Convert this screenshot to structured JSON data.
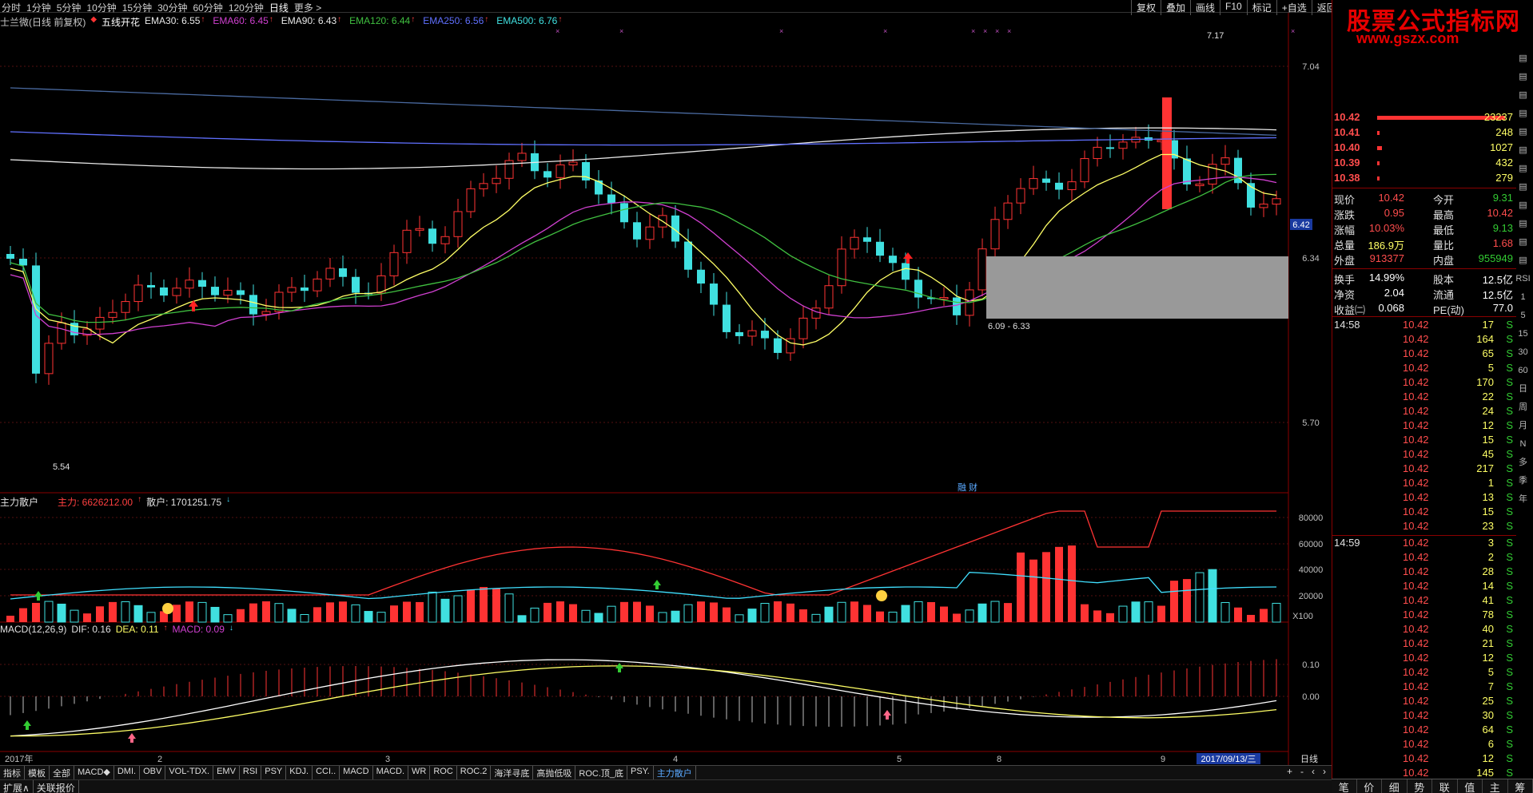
{
  "topbar": {
    "periods": [
      "分时",
      "1分钟",
      "5分钟",
      "10分钟",
      "15分钟",
      "30分钟",
      "60分钟",
      "120分钟",
      "日线",
      "更多 >"
    ],
    "active_period": "日线",
    "right_buttons": [
      "复权",
      "叠加",
      "画线",
      "F10",
      "标记",
      "+自选",
      "返回"
    ]
  },
  "main_header": {
    "stock": "士兰微(日线 前复权)",
    "pattern": "五线开花",
    "emas": [
      {
        "label": "EMA30: 6.55",
        "color": "#e8e8e8"
      },
      {
        "label": "EMA60: 6.45",
        "color": "#d040d0"
      },
      {
        "label": "EMA90: 6.43",
        "color": "#e8e8e8"
      },
      {
        "label": "EMA120: 6.44",
        "color": "#40c040"
      },
      {
        "label": "EMA250: 6.56",
        "color": "#6070ff"
      },
      {
        "label": "EMA500: 6.76",
        "color": "#40e0e0"
      }
    ]
  },
  "price_axis": {
    "labels": [
      "7.04",
      "6.34",
      "5.70"
    ],
    "current_tag": "6.42"
  },
  "annotations": {
    "high": "7.17",
    "low": "5.54",
    "gap": "6.09 - 6.33",
    "event": "融 财"
  },
  "capital_header": {
    "name": "主力散户",
    "main_label": "主力: 6626212.00",
    "retail_label": "散户: 1701251.75",
    "axis": [
      "80000",
      "60000",
      "40000",
      "20000"
    ],
    "unit": "X100",
    "main_color": "#ff3333",
    "retail_color": "#40e0ff"
  },
  "macd_header": {
    "name": "MACD(12,26,9)",
    "dif": "DIF: 0.16",
    "dea": "DEA: 0.11",
    "macd": "MACD: 0.09",
    "axis": [
      "0.10",
      "0.00"
    ]
  },
  "time_axis": {
    "labels": [
      "2017年",
      "2",
      "3",
      "4",
      "5",
      "8",
      "9"
    ],
    "cursor": "2017/09/13/三",
    "period_btn": "日线"
  },
  "tabs": [
    "指标",
    "模板",
    "全部",
    "MACD◆",
    "DMI.",
    "OBV",
    "VOL-TDX.",
    "EMV",
    "RSI",
    "PSY",
    "KDJ.",
    "CCI..",
    "MACD",
    "MACD.",
    "WR",
    "ROC",
    "ROC.2",
    "海洋寻底",
    "高抛低吸",
    "ROC.顶_底",
    "PSY.",
    "主力散户"
  ],
  "active_tab": "主力散户",
  "tabs_bottom": [
    "扩展∧",
    "关联报价"
  ],
  "tabs_ctl": [
    "+",
    "-",
    "‹",
    "›"
  ],
  "logo": {
    "title": "股票公式指标网",
    "url": "www.gszx.com"
  },
  "order_book": [
    {
      "price": "10.42",
      "vol": "23237",
      "bar": 1.0
    },
    {
      "price": "10.41",
      "vol": "248",
      "bar": 0.02
    },
    {
      "price": "10.40",
      "vol": "1027",
      "bar": 0.04
    },
    {
      "price": "10.39",
      "vol": "432",
      "bar": 0.02
    },
    {
      "price": "10.38",
      "vol": "279",
      "bar": 0.02
    }
  ],
  "quote": [
    {
      "l1": "现价",
      "v1": "10.42",
      "c1": "#ff4d4d",
      "l2": "今开",
      "v2": "9.31",
      "c2": "#33cc33"
    },
    {
      "l1": "涨跌",
      "v1": "0.95",
      "c1": "#ff4d4d",
      "l2": "最高",
      "v2": "10.42",
      "c2": "#ff4d4d"
    },
    {
      "l1": "涨幅",
      "v1": "10.03%",
      "c1": "#ff4d4d",
      "l2": "最低",
      "v2": "9.13",
      "c2": "#33cc33"
    },
    {
      "l1": "总量",
      "v1": "186.9万",
      "c1": "#ffff66",
      "l2": "量比",
      "v2": "1.68",
      "c2": "#ff4d4d"
    },
    {
      "l1": "外盘",
      "v1": "913377",
      "c1": "#ff4d4d",
      "l2": "内盘",
      "v2": "955949",
      "c2": "#33cc33"
    }
  ],
  "quote2": [
    {
      "l1": "换手",
      "v1": "14.99%",
      "l2": "股本",
      "v2": "12.5亿"
    },
    {
      "l1": "净资",
      "v1": "2.04",
      "l2": "流通",
      "v2": "12.5亿"
    },
    {
      "l1": "收益㈡",
      "v1": "0.068",
      "l2": "PE(动)",
      "v2": "77.0"
    }
  ],
  "ticks_1458": {
    "time": "14:58",
    "rows": [
      "17",
      "164",
      "65",
      "5",
      "170",
      "22",
      "24",
      "12",
      "15",
      "45",
      "217",
      "1",
      "13",
      "15",
      "23"
    ]
  },
  "ticks_1459": {
    "time": "14:59",
    "rows": [
      "3",
      "2",
      "28",
      "14",
      "41",
      "78",
      "40",
      "21",
      "12",
      "5",
      "7",
      "25",
      "30",
      "64",
      "6",
      "12",
      "145"
    ]
  },
  "tick_price": "10.42",
  "tick_side": "S",
  "side_tools": [
    "RSI",
    "1",
    "5",
    "15",
    "30",
    "60",
    "日",
    "周",
    "月",
    "N",
    "多",
    "季",
    "年"
  ],
  "right_bottom": [
    "笔",
    "价",
    "细",
    "势",
    "联",
    "值",
    "主",
    "筹"
  ]
}
